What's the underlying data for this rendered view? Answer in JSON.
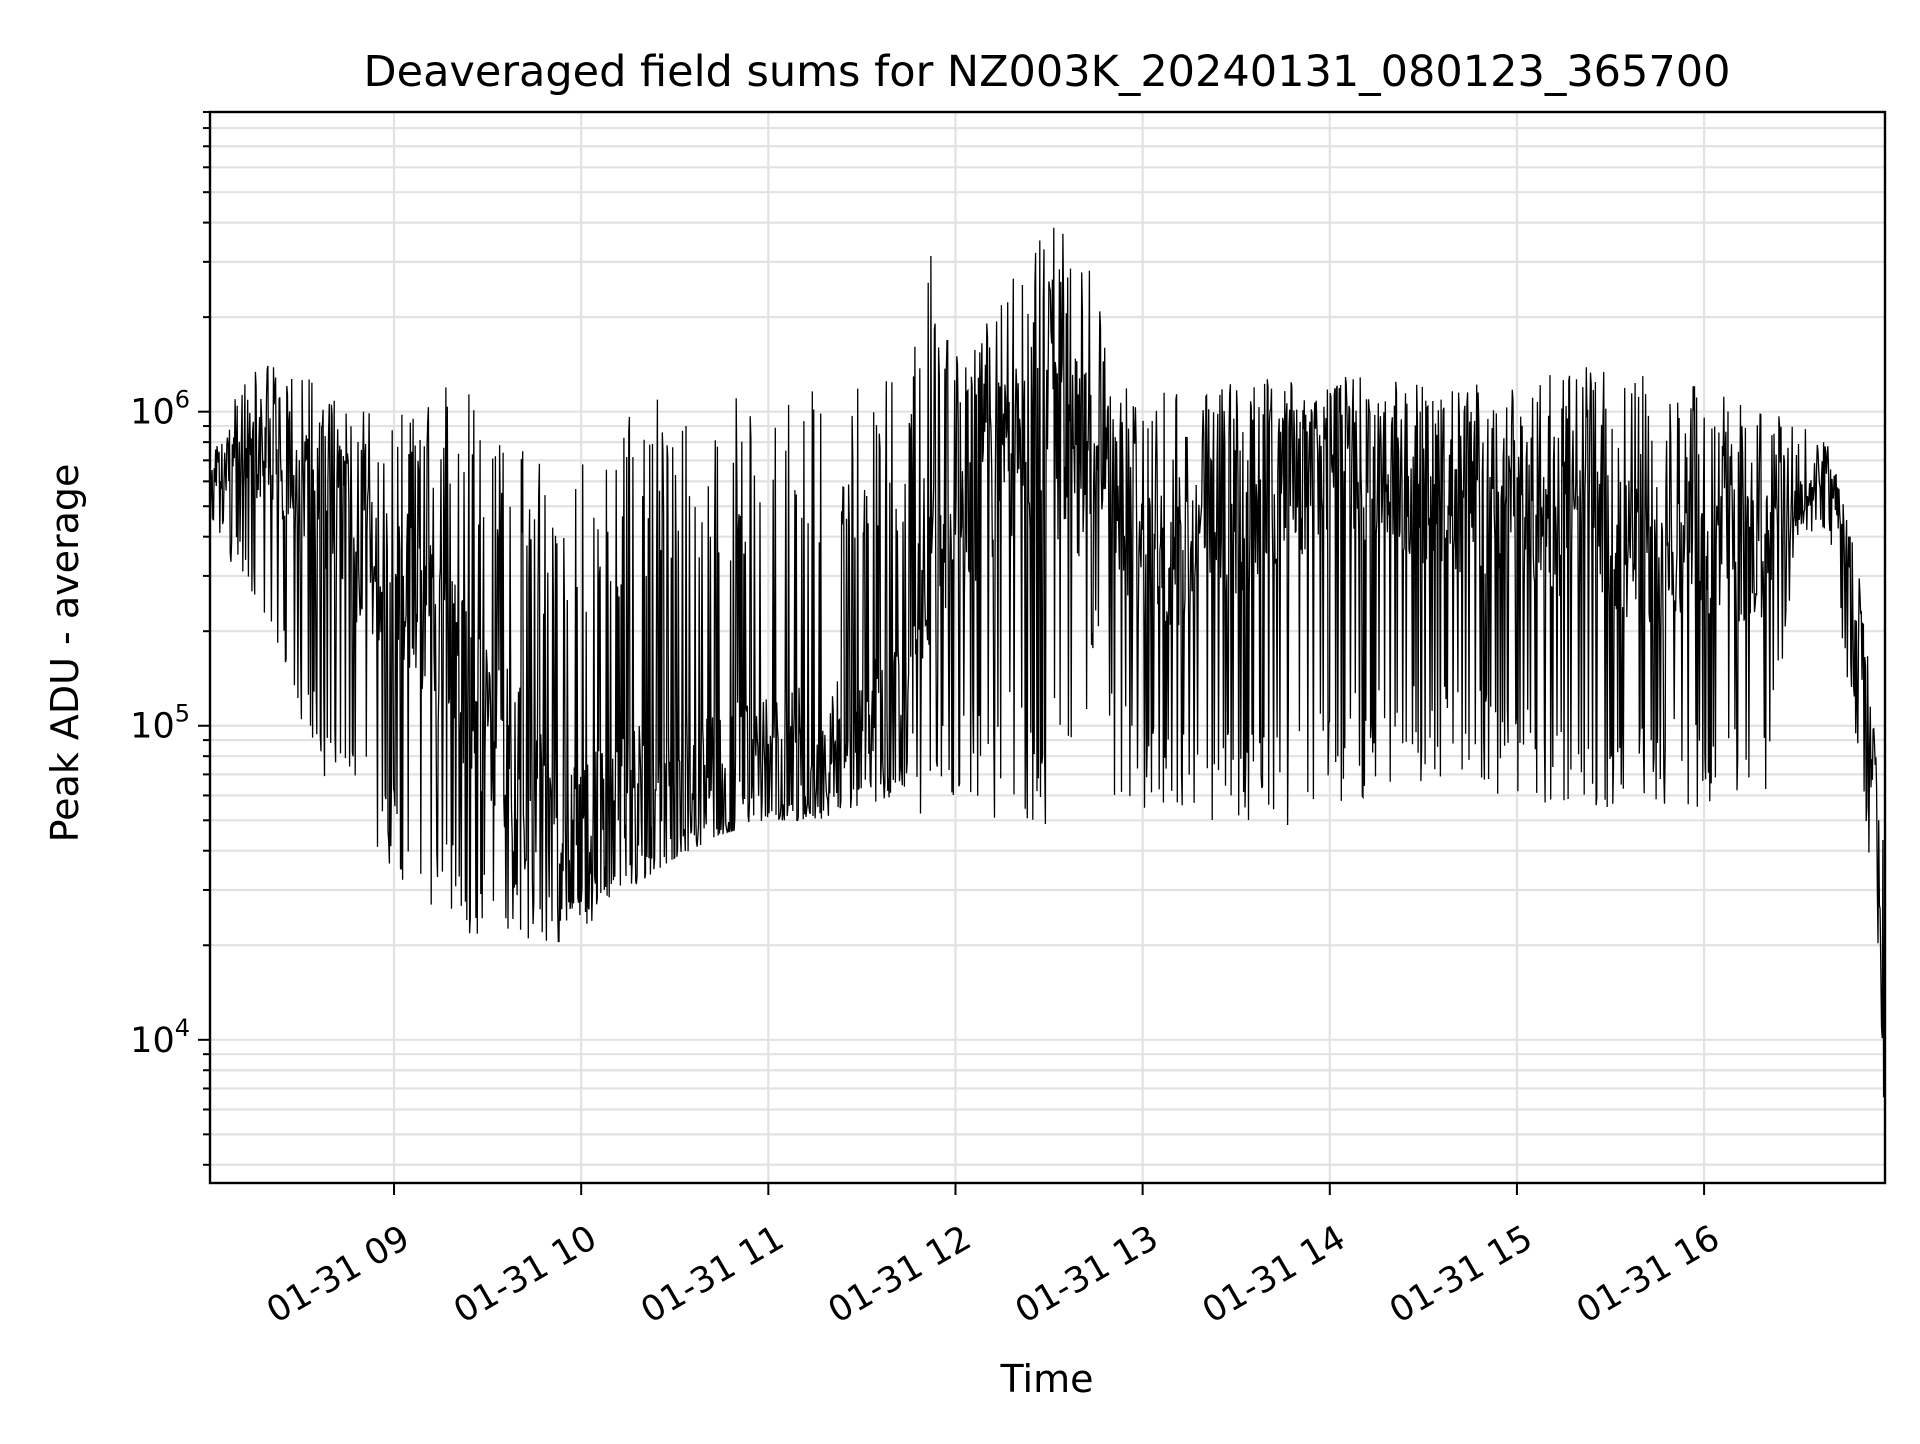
{
  "chart_data": {
    "type": "line",
    "title": "Deaveraged field sums for NZ003K_20240131_080123_365700",
    "xlabel": "Time",
    "ylabel": "Peak ADU - average",
    "yscale": "log",
    "ylim": [
      3500,
      9000000
    ],
    "xlim": [
      "2024-01-31T08:01",
      "2024-01-31T16:58"
    ],
    "grid": true,
    "line_color": "#000000",
    "x_ticks": [
      {
        "t": "2024-01-31T09:00",
        "label": "01-31 09"
      },
      {
        "t": "2024-01-31T10:00",
        "label": "01-31 10"
      },
      {
        "t": "2024-01-31T11:00",
        "label": "01-31 11"
      },
      {
        "t": "2024-01-31T12:00",
        "label": "01-31 12"
      },
      {
        "t": "2024-01-31T13:00",
        "label": "01-31 13"
      },
      {
        "t": "2024-01-31T14:00",
        "label": "01-31 14"
      },
      {
        "t": "2024-01-31T15:00",
        "label": "01-31 15"
      },
      {
        "t": "2024-01-31T16:00",
        "label": "01-31 16"
      }
    ],
    "y_ticks": [
      {
        "value": 10000,
        "base": "10",
        "exp": "4"
      },
      {
        "value": 100000,
        "base": "10",
        "exp": "5"
      },
      {
        "value": 1000000,
        "base": "10",
        "exp": "6"
      }
    ],
    "series": [
      {
        "description": "Signal profile: each point gives the upper envelope (hi), typical level (mid) and lower envelope (lo) of the rapidly fluctuating trace",
        "x": [
          "2024-01-31T08:01",
          "2024-01-31T08:10",
          "2024-01-31T08:20",
          "2024-01-31T08:30",
          "2024-01-31T08:40",
          "2024-01-31T08:50",
          "2024-01-31T09:00",
          "2024-01-31T09:10",
          "2024-01-31T09:20",
          "2024-01-31T09:30",
          "2024-01-31T09:40",
          "2024-01-31T09:50",
          "2024-01-31T10:00",
          "2024-01-31T10:15",
          "2024-01-31T10:30",
          "2024-01-31T10:45",
          "2024-01-31T11:00",
          "2024-01-31T11:15",
          "2024-01-31T11:30",
          "2024-01-31T11:45",
          "2024-01-31T11:50",
          "2024-01-31T12:00",
          "2024-01-31T12:10",
          "2024-01-31T12:20",
          "2024-01-31T12:30",
          "2024-01-31T12:40",
          "2024-01-31T12:45",
          "2024-01-31T12:50",
          "2024-01-31T13:00",
          "2024-01-31T13:20",
          "2024-01-31T13:40",
          "2024-01-31T14:00",
          "2024-01-31T14:20",
          "2024-01-31T14:40",
          "2024-01-31T15:00",
          "2024-01-31T15:20",
          "2024-01-31T15:40",
          "2024-01-31T16:00",
          "2024-01-31T16:20",
          "2024-01-31T16:30",
          "2024-01-31T16:40",
          "2024-01-31T16:50",
          "2024-01-31T16:55",
          "2024-01-31T16:58"
        ],
        "hi": [
          700000,
          1200000,
          1500000,
          1400000,
          1100000,
          1100000,
          1100000,
          1200000,
          1200000,
          1100000,
          900000,
          700000,
          700000,
          1000000,
          1200000,
          1200000,
          1200000,
          1200000,
          1200000,
          1300000,
          4000000,
          1500000,
          2000000,
          3000000,
          4000000,
          3500000,
          3000000,
          1200000,
          1200000,
          1200000,
          1300000,
          1300000,
          1300000,
          1200000,
          1400000,
          1400000,
          1300000,
          1200000,
          1000000,
          1000000,
          800000,
          300000,
          90000,
          40000
        ],
        "mid": [
          600000,
          700000,
          700000,
          600000,
          500000,
          350000,
          300000,
          200000,
          150000,
          100000,
          70000,
          50000,
          45000,
          55000,
          60000,
          70000,
          70000,
          80000,
          90000,
          110000,
          300000,
          400000,
          600000,
          800000,
          900000,
          700000,
          800000,
          600000,
          300000,
          400000,
          500000,
          700000,
          600000,
          500000,
          500000,
          400000,
          350000,
          350000,
          350000,
          500000,
          700000,
          200000,
          50000,
          12000
        ],
        "lo": [
          450000,
          300000,
          200000,
          100000,
          55000,
          40000,
          35000,
          25000,
          22000,
          20000,
          20000,
          20000,
          22000,
          30000,
          38000,
          45000,
          50000,
          50000,
          55000,
          60000,
          50000,
          60000,
          50000,
          50000,
          45000,
          45000,
          200000,
          60000,
          55000,
          45000,
          45000,
          55000,
          60000,
          70000,
          55000,
          55000,
          55000,
          55000,
          60000,
          400000,
          400000,
          70000,
          25000,
          4500
        ]
      }
    ]
  }
}
